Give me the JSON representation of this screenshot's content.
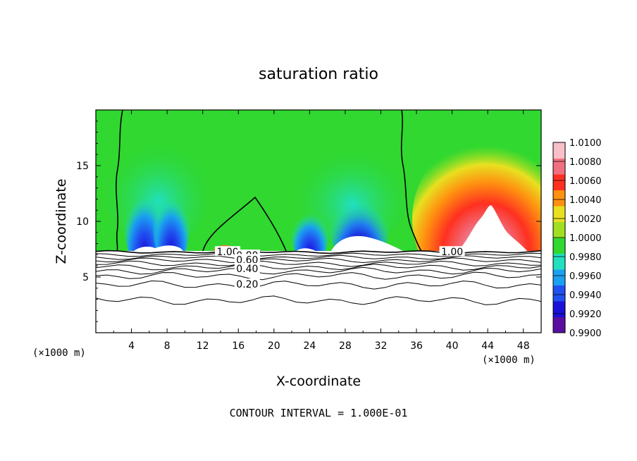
{
  "chart_data": {
    "type": "heatmap",
    "title": "saturation ratio",
    "xlabel": "X-coordinate",
    "ylabel": "Z-coordinate",
    "x_unit_note": "(×1000 m)",
    "footer": "CONTOUR INTERVAL = 1.000E-01",
    "xlim": [
      0,
      50
    ],
    "ylim": [
      0,
      20
    ],
    "x_ticks": [
      4,
      8,
      12,
      16,
      20,
      24,
      28,
      32,
      36,
      40,
      44,
      48
    ],
    "y_ticks": [
      5,
      10,
      15
    ],
    "colorbar": {
      "levels": [
        "0.9900",
        "0.9920",
        "0.9940",
        "0.9960",
        "0.9980",
        "1.0000",
        "1.0020",
        "1.0040",
        "1.0060",
        "1.0080",
        "1.0100"
      ],
      "colors": [
        "#5a0fa0",
        "#1a10d8",
        "#2050f0",
        "#1aa0f0",
        "#20e0c0",
        "#30d830",
        "#a0e020",
        "#e8e020",
        "#ff9010",
        "#ff3020",
        "#f07080",
        "#f8c0c8"
      ]
    },
    "contour_labels": [
      {
        "text": "1.00",
        "x": 14.8,
        "z": 7.2
      },
      {
        "text": "0.80",
        "x": 17.0,
        "z": 6.9
      },
      {
        "text": "0.60",
        "x": 17.0,
        "z": 6.5
      },
      {
        "text": "0.40",
        "x": 17.0,
        "z": 5.7
      },
      {
        "text": "0.20",
        "x": 17.0,
        "z": 4.3
      },
      {
        "text": "1.00",
        "x": 40.0,
        "z": 7.2
      }
    ]
  }
}
